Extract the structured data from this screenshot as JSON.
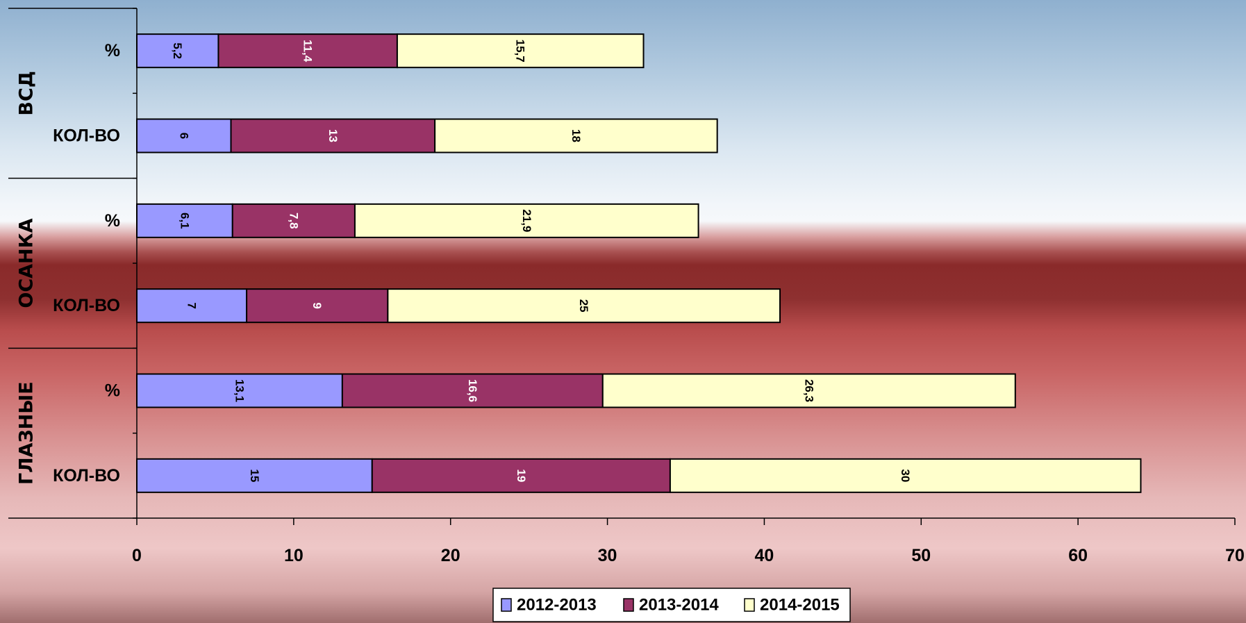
{
  "chart_data": {
    "type": "bar",
    "orientation": "horizontal",
    "stacked": true,
    "groups": [
      {
        "label": "ВСД",
        "rows": [
          {
            "label": "%",
            "values": [
              5.2,
              11.4,
              15.7
            ],
            "labels": [
              "5,2",
              "11,4",
              "15,7"
            ]
          },
          {
            "label": "КОЛ-ВО",
            "values": [
              6,
              13,
              18
            ],
            "labels": [
              "6",
              "13",
              "18"
            ]
          }
        ]
      },
      {
        "label": "ОСАНКА",
        "rows": [
          {
            "label": "%",
            "values": [
              6.1,
              7.8,
              21.9
            ],
            "labels": [
              "6,1",
              "7,8",
              "21,9"
            ]
          },
          {
            "label": "КОЛ-ВО",
            "values": [
              7,
              9,
              25
            ],
            "labels": [
              "7",
              "9",
              "25"
            ]
          }
        ]
      },
      {
        "label": "ГЛАЗНЫЕ",
        "rows": [
          {
            "label": "%",
            "values": [
              13.1,
              16.6,
              26.3
            ],
            "labels": [
              "13,1",
              "16,6",
              "26,3"
            ]
          },
          {
            "label": "КОЛ-ВО",
            "values": [
              15,
              19,
              30
            ],
            "labels": [
              "15",
              "19",
              "30"
            ]
          }
        ]
      }
    ],
    "series": [
      {
        "name": "2012-2013",
        "color": "#9999ff",
        "label_color": "#000000"
      },
      {
        "name": "2013-2014",
        "color": "#993366",
        "label_color": "#ffffff"
      },
      {
        "name": "2014-2015",
        "color": "#ffffcc",
        "label_color": "#000000"
      }
    ],
    "xlim": [
      0,
      70
    ],
    "xticks": [
      0,
      10,
      20,
      30,
      40,
      50,
      60,
      70
    ],
    "grid": false,
    "legend_position": "bottom-center"
  }
}
